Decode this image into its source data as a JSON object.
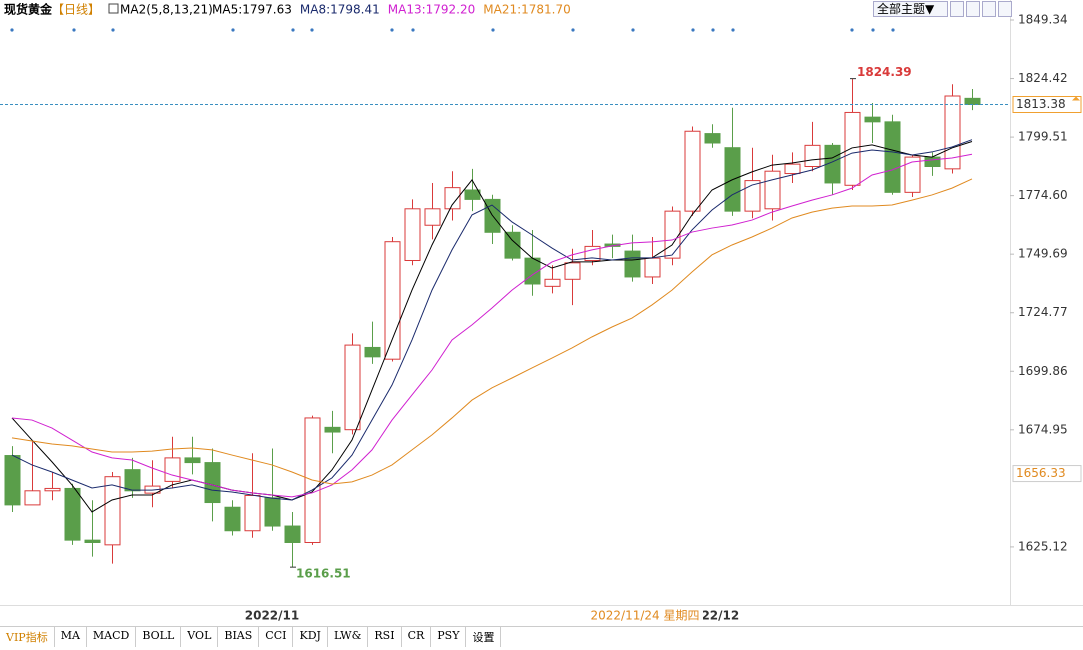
{
  "chart_data": {
    "type": "candlestick",
    "title": "现货黄金",
    "period": "【日线】",
    "indicator": "MA2(5,8,13,21)",
    "categories": [
      null,
      null,
      null,
      null,
      null,
      null,
      null,
      null,
      null,
      null,
      null,
      null,
      null,
      "2022/11",
      null,
      null,
      null,
      null,
      null,
      null,
      null,
      null,
      null,
      null,
      null,
      null,
      null,
      null,
      null,
      null,
      null,
      null,
      null,
      null,
      null,
      "2022/12",
      null,
      null,
      null,
      null,
      null,
      null,
      null,
      null,
      null,
      null,
      null,
      null,
      null
    ],
    "open": [
      1664,
      1643,
      1649,
      1650,
      1628,
      1626,
      1658,
      1648,
      1653,
      1663,
      1661,
      1642,
      1632,
      1646,
      1634,
      1627,
      1676,
      1675,
      1710,
      1705,
      1747,
      1762,
      1769,
      1777,
      1773,
      1759,
      1748,
      1736,
      1739,
      1747,
      1754,
      1751,
      1740,
      1748,
      1768,
      1801,
      1795,
      1768,
      1769,
      1784,
      1787,
      1796,
      1779,
      1808,
      1806,
      1776,
      1791,
      1786,
      1816
    ],
    "high": [
      1668,
      1670,
      1657,
      1652,
      1645,
      1657,
      1663,
      1662,
      1672,
      1672,
      1667,
      1645,
      1665,
      1667,
      1640,
      1681,
      1683,
      1716,
      1721,
      1757,
      1773,
      1780,
      1785,
      1786,
      1775,
      1762,
      1760,
      1745,
      1752,
      1760,
      1758,
      1758,
      1757,
      1770,
      1804,
      1805,
      1812,
      1795,
      1792,
      1793,
      1806,
      1797,
      1824.39,
      1814,
      1809,
      1792,
      1793,
      1822,
      1820
    ],
    "low": [
      1640,
      1643,
      1645,
      1626,
      1621,
      1618,
      1646,
      1642,
      1650,
      1656,
      1636,
      1630,
      1629,
      1632,
      1616.51,
      1626,
      1665,
      1673,
      1703,
      1704,
      1745,
      1756,
      1764,
      1768,
      1754,
      1747,
      1732,
      1733,
      1728,
      1745,
      1748,
      1738,
      1737,
      1745,
      1766,
      1795,
      1766,
      1765,
      1764,
      1780,
      1785,
      1775,
      1777,
      1797,
      1775,
      1774,
      1783,
      1784,
      1811
    ],
    "close": [
      1643,
      1649,
      1650,
      1628,
      1627,
      1655,
      1649,
      1651,
      1663,
      1661,
      1644,
      1632,
      1647,
      1634,
      1627,
      1680,
      1674,
      1711,
      1706,
      1755,
      1769,
      1769,
      1778,
      1773,
      1759,
      1748,
      1737,
      1739,
      1746,
      1753,
      1753,
      1740,
      1748,
      1768,
      1802,
      1797,
      1768,
      1781,
      1785,
      1788,
      1796,
      1780,
      1810,
      1806,
      1776,
      1791,
      1787,
      1817,
      1813.38
    ],
    "up_color": "#d93a3a",
    "down_color": "#5a9e4a",
    "series": [
      {
        "name": "MA5:1797.63",
        "color": "#000000",
        "values": [
          1680.0,
          1670.6,
          1661.3,
          1651.5,
          1640.0,
          1645.1,
          1647.2,
          1647.2,
          1651.5,
          1653.6,
          1651.5,
          1649.3,
          1648.1,
          1647.2,
          1645.1,
          1648.5,
          1657.9,
          1670.6,
          1691.9,
          1713.2,
          1734.4,
          1753.6,
          1770.6,
          1781.3,
          1766.4,
          1755.7,
          1748.1,
          1743.8,
          1746.4,
          1746.4,
          1747.2,
          1747.2,
          1748.1,
          1753.6,
          1766.4,
          1777.0,
          1781.3,
          1784.7,
          1787.6,
          1788.5,
          1789.8,
          1790.6,
          1794.9,
          1796.2,
          1794.0,
          1791.9,
          1791.0,
          1794.9,
          1797.63
        ]
      },
      {
        "name": "MA8:1798.41",
        "color": "#1a2a6c",
        "values": [
          1664.2,
          1660.0,
          1657.0,
          1653.6,
          1650.2,
          1651.5,
          1649.3,
          1649.3,
          1650.2,
          1651.5,
          1649.3,
          1648.5,
          1647.2,
          1645.9,
          1645.1,
          1649.3,
          1654.5,
          1664.2,
          1679.1,
          1694.0,
          1713.2,
          1734.4,
          1751.5,
          1766.4,
          1770.6,
          1763.4,
          1757.9,
          1752.3,
          1747.2,
          1748.1,
          1747.2,
          1748.1,
          1748.1,
          1749.3,
          1760.0,
          1768.5,
          1774.9,
          1779.1,
          1781.3,
          1783.4,
          1785.5,
          1788.9,
          1792.7,
          1794.0,
          1793.2,
          1791.9,
          1793.2,
          1795.3,
          1798.41
        ]
      },
      {
        "name": "MA13:1792.20",
        "color": "#d020d0",
        "values": [
          1680.0,
          1679.1,
          1675.7,
          1670.6,
          1665.5,
          1663.0,
          1662.1,
          1658.7,
          1655.7,
          1653.6,
          1651.5,
          1649.3,
          1648.1,
          1647.2,
          1646.4,
          1648.1,
          1651.5,
          1657.9,
          1666.4,
          1679.1,
          1689.8,
          1700.4,
          1713.2,
          1719.6,
          1726.8,
          1734.4,
          1740.8,
          1746.4,
          1749.4,
          1751.5,
          1753.2,
          1754.5,
          1754.9,
          1755.7,
          1759.1,
          1760.8,
          1762.1,
          1764.2,
          1767.6,
          1770.2,
          1772.7,
          1774.9,
          1777.8,
          1783.4,
          1785.5,
          1788.9,
          1789.8,
          1790.6,
          1792.2
        ]
      },
      {
        "name": "MA21:1781.70",
        "color": "#e08a20",
        "values": [
          1671.5,
          1670.2,
          1668.9,
          1668.1,
          1666.8,
          1665.5,
          1665.5,
          1665.9,
          1666.8,
          1667.2,
          1666.4,
          1664.2,
          1662.1,
          1660.0,
          1657.0,
          1653.6,
          1651.9,
          1652.8,
          1655.7,
          1660.0,
          1666.4,
          1672.8,
          1680.0,
          1687.6,
          1692.8,
          1697.0,
          1701.3,
          1705.5,
          1709.8,
          1714.5,
          1718.7,
          1722.5,
          1728.1,
          1734.4,
          1742.1,
          1749.4,
          1753.6,
          1757.0,
          1760.8,
          1765.1,
          1767.6,
          1769.3,
          1770.2,
          1770.2,
          1770.6,
          1772.7,
          1774.9,
          1777.8,
          1781.7
        ]
      }
    ],
    "ylim": [
      1600.4,
      1857.85
    ],
    "yticks": [
      1849.34,
      1824.42,
      1799.51,
      {
        "value": 1774.6,
        "label": "1774.60"
      },
      1749.69,
      1724.77,
      1699.86,
      1674.95,
      1625.12
    ],
    "grid": false,
    "price_line": {
      "value": 1813.38,
      "color": "#f0a030"
    },
    "crosshair": {
      "value": 1656.33,
      "date": "2022/11/24 星期四",
      "color": "#e08a20"
    }
  },
  "toolbar": {
    "theme": "全部主题▼"
  },
  "tabs": [
    "VIP指标",
    "MA",
    "MACD",
    "BOLL",
    "VOL",
    "BIAS",
    "CCI",
    "KDJ",
    "LW&",
    "RSI",
    "CR",
    "PSY",
    "设置"
  ]
}
